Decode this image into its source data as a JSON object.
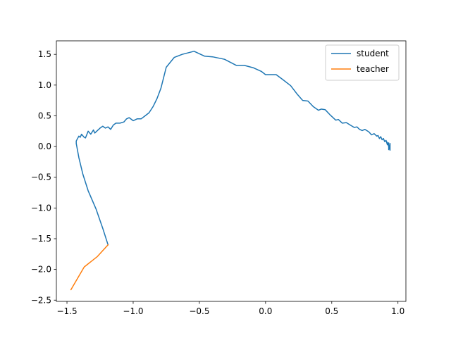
{
  "chart_data": {
    "type": "line",
    "title": "",
    "xlabel": "",
    "ylabel": "",
    "xlim": [
      -1.58,
      1.06
    ],
    "ylim": [
      -2.52,
      1.72
    ],
    "grid": false,
    "legend_position": "upper right",
    "xticks": [
      {
        "value": -1.5,
        "label": "−1.5"
      },
      {
        "value": -1.0,
        "label": "−1.0"
      },
      {
        "value": -0.5,
        "label": "−0.5"
      },
      {
        "value": 0.0,
        "label": "0.0"
      },
      {
        "value": 0.5,
        "label": "0.5"
      },
      {
        "value": 1.0,
        "label": "1.0"
      }
    ],
    "yticks": [
      {
        "value": 1.5,
        "label": "1.5"
      },
      {
        "value": 1.0,
        "label": "1.0"
      },
      {
        "value": 0.5,
        "label": "0.5"
      },
      {
        "value": 0.0,
        "label": "0.0"
      },
      {
        "value": -0.5,
        "label": "−0.5"
      },
      {
        "value": -1.0,
        "label": "−1.0"
      },
      {
        "value": -1.5,
        "label": "−1.5"
      },
      {
        "value": -2.0,
        "label": "−2.0"
      },
      {
        "value": -2.5,
        "label": "−2.5"
      }
    ],
    "series": [
      {
        "name": "student",
        "color": "#1f77b4",
        "points": [
          [
            -1.19,
            -1.6
          ],
          [
            -1.23,
            -1.33
          ],
          [
            -1.28,
            -1.02
          ],
          [
            -1.34,
            -0.72
          ],
          [
            -1.38,
            -0.45
          ],
          [
            -1.41,
            -0.18
          ],
          [
            -1.43,
            0.05
          ],
          [
            -1.43,
            0.09
          ],
          [
            -1.41,
            0.17
          ],
          [
            -1.4,
            0.15
          ],
          [
            -1.39,
            0.2
          ],
          [
            -1.37,
            0.15
          ],
          [
            -1.36,
            0.14
          ],
          [
            -1.34,
            0.25
          ],
          [
            -1.32,
            0.2
          ],
          [
            -1.3,
            0.27
          ],
          [
            -1.29,
            0.22
          ],
          [
            -1.27,
            0.26
          ],
          [
            -1.25,
            0.3
          ],
          [
            -1.23,
            0.33
          ],
          [
            -1.21,
            0.3
          ],
          [
            -1.19,
            0.32
          ],
          [
            -1.17,
            0.28
          ],
          [
            -1.15,
            0.35
          ],
          [
            -1.13,
            0.38
          ],
          [
            -1.1,
            0.38
          ],
          [
            -1.07,
            0.4
          ],
          [
            -1.05,
            0.45
          ],
          [
            -1.03,
            0.47
          ],
          [
            -1.0,
            0.42
          ],
          [
            -0.97,
            0.45
          ],
          [
            -0.94,
            0.45
          ],
          [
            -0.91,
            0.5
          ],
          [
            -0.88,
            0.55
          ],
          [
            -0.85,
            0.65
          ],
          [
            -0.82,
            0.78
          ],
          [
            -0.79,
            0.95
          ],
          [
            -0.75,
            1.29
          ],
          [
            -0.69,
            1.45
          ],
          [
            -0.63,
            1.5
          ],
          [
            -0.54,
            1.55
          ],
          [
            -0.46,
            1.47
          ],
          [
            -0.4,
            1.46
          ],
          [
            -0.31,
            1.42
          ],
          [
            -0.22,
            1.32
          ],
          [
            -0.16,
            1.32
          ],
          [
            -0.09,
            1.28
          ],
          [
            -0.03,
            1.22
          ],
          [
            0.0,
            1.17
          ],
          [
            0.04,
            1.17
          ],
          [
            0.08,
            1.17
          ],
          [
            0.13,
            1.09
          ],
          [
            0.19,
            0.99
          ],
          [
            0.24,
            0.85
          ],
          [
            0.28,
            0.75
          ],
          [
            0.32,
            0.74
          ],
          [
            0.36,
            0.65
          ],
          [
            0.4,
            0.59
          ],
          [
            0.42,
            0.61
          ],
          [
            0.45,
            0.6
          ],
          [
            0.49,
            0.51
          ],
          [
            0.53,
            0.43
          ],
          [
            0.55,
            0.44
          ],
          [
            0.58,
            0.38
          ],
          [
            0.61,
            0.39
          ],
          [
            0.64,
            0.35
          ],
          [
            0.67,
            0.31
          ],
          [
            0.69,
            0.32
          ],
          [
            0.71,
            0.28
          ],
          [
            0.73,
            0.26
          ],
          [
            0.75,
            0.28
          ],
          [
            0.78,
            0.24
          ],
          [
            0.8,
            0.19
          ],
          [
            0.82,
            0.21
          ],
          [
            0.84,
            0.17
          ],
          [
            0.85,
            0.18
          ],
          [
            0.86,
            0.13
          ],
          [
            0.87,
            0.16
          ],
          [
            0.88,
            0.11
          ],
          [
            0.89,
            0.13
          ],
          [
            0.9,
            0.08
          ],
          [
            0.91,
            0.1
          ],
          [
            0.92,
            0.03
          ],
          [
            0.92,
            0.07
          ],
          [
            0.93,
            0.0
          ],
          [
            0.93,
            0.06
          ],
          [
            0.93,
            -0.05
          ],
          [
            0.93,
            0.04
          ],
          [
            0.94,
            -0.06
          ],
          [
            0.94,
            0.05
          ],
          [
            0.94,
            -0.03
          ]
        ]
      },
      {
        "name": "teacher",
        "color": "#ff7f0e",
        "points": [
          [
            -1.19,
            -1.6
          ],
          [
            -1.27,
            -1.79
          ],
          [
            -1.37,
            -1.96
          ],
          [
            -1.47,
            -2.33
          ]
        ]
      }
    ]
  }
}
